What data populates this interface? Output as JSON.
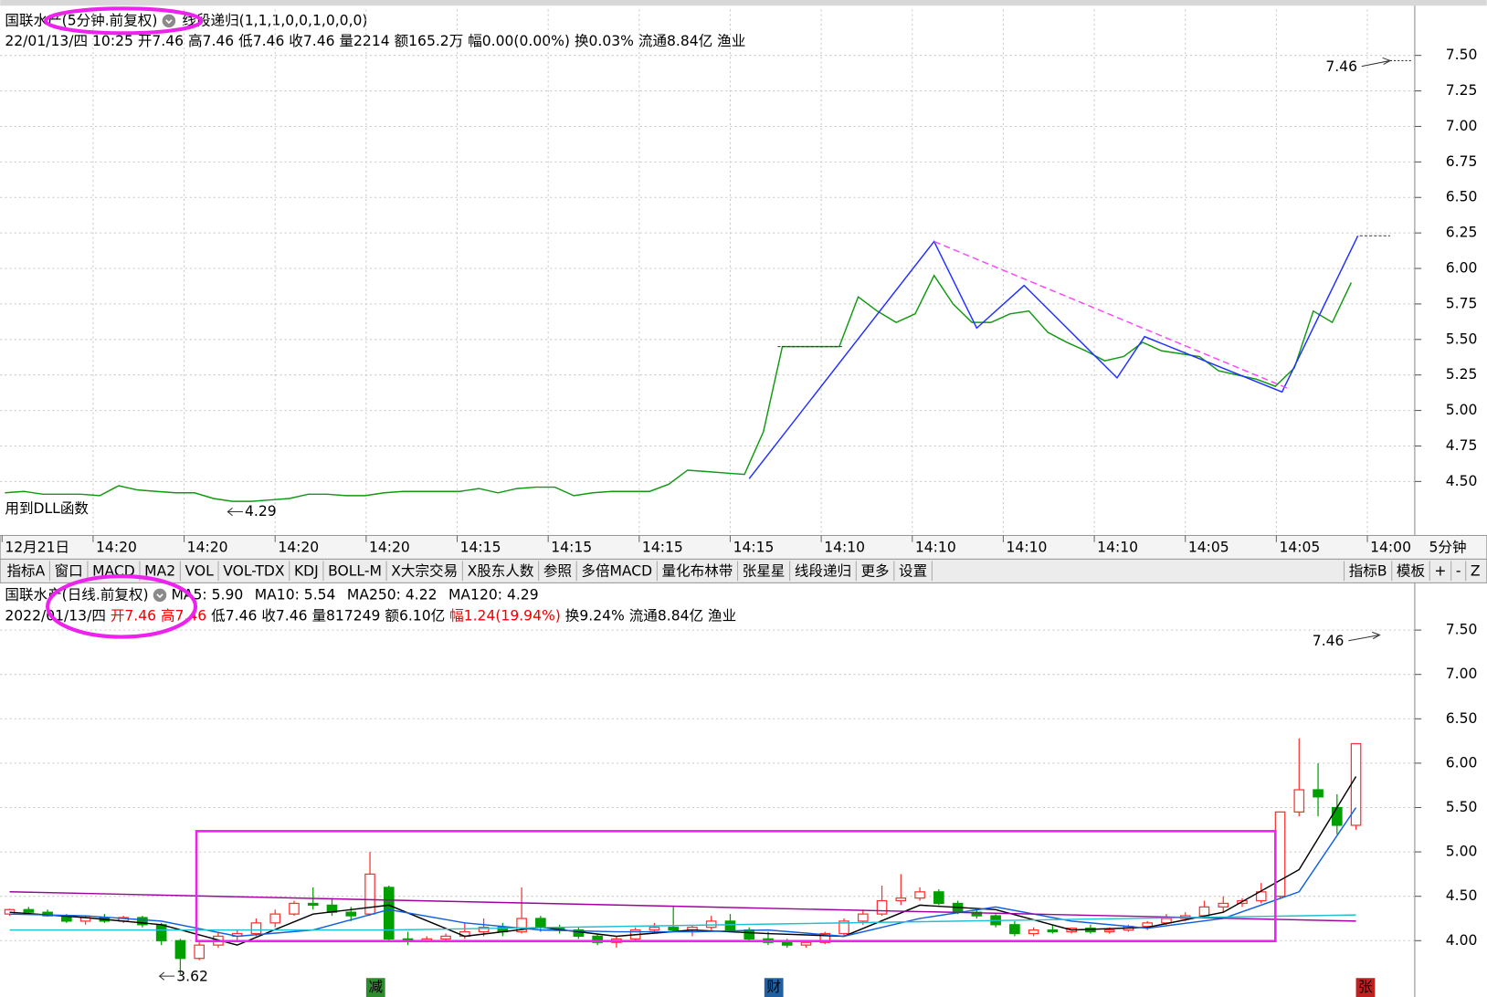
{
  "chart_data": [
    {
      "type": "line",
      "title": "国联水产(5分钟.前复权)",
      "indicator": "线段递归(1,1,1,0,0,1,0,0,0)",
      "info": "22/01/13/四 10:25 开7.46 高7.46 低7.46 收7.46 量2214 额165.2万 幅0.00(0.00%) 换0.03% 流通8.84亿 渔业",
      "x_tick_labels": [
        "12月21日",
        "14:20",
        "14:20",
        "14:20",
        "14:20",
        "14:15",
        "14:15",
        "14:15",
        "14:15",
        "14:10",
        "14:10",
        "14:10",
        "14:10",
        "14:05",
        "14:05",
        "14:00"
      ],
      "period": "5分钟",
      "color": "#119911",
      "values": [
        4.42,
        4.43,
        4.41,
        4.41,
        4.41,
        4.4,
        4.47,
        4.44,
        4.43,
        4.42,
        4.42,
        4.38,
        4.36,
        4.36,
        4.37,
        4.38,
        4.41,
        4.41,
        4.4,
        4.4,
        4.42,
        4.43,
        4.43,
        4.43,
        4.43,
        4.45,
        4.42,
        4.45,
        4.46,
        4.46,
        4.4,
        4.42,
        4.43,
        4.43,
        4.43,
        4.48,
        4.58,
        4.57,
        4.56,
        4.55,
        4.85,
        5.45,
        5.45,
        5.45,
        5.45,
        5.8,
        5.7,
        5.62,
        5.68,
        5.95,
        5.75,
        5.62,
        5.62,
        5.68,
        5.7,
        5.55,
        5.48,
        5.42,
        5.35,
        5.38,
        5.48,
        5.42,
        5.4,
        5.38,
        5.28,
        5.25,
        5.22,
        5.17,
        5.3,
        5.7,
        5.62,
        5.9
      ],
      "zigzag": {
        "color": "#1f2fff",
        "x": [
          39.25,
          49,
          51.25,
          53.75,
          58.65,
          60.1,
          67.35,
          71.35
        ],
        "values": [
          4.52,
          6.19,
          5.58,
          5.88,
          5.23,
          5.52,
          5.13,
          6.23
        ]
      },
      "trend": {
        "color": "#ff44ff",
        "x": [
          49,
          67.75
        ],
        "values": [
          6.19,
          5.15
        ]
      },
      "annotations": [
        "7.46",
        "4.29",
        "用到DLL函数"
      ],
      "ylim": [
        4.12,
        7.81
      ],
      "yticks": [
        {
          "value": 4.5,
          "label": "4.50"
        },
        {
          "value": 4.75,
          "label": "4.75"
        },
        {
          "value": 5,
          "label": "5.00"
        },
        {
          "value": 5.25,
          "label": "5.25"
        },
        {
          "value": 5.5,
          "label": "5.50"
        },
        {
          "value": 5.75,
          "label": "5.75"
        },
        {
          "value": 6,
          "label": "6.00"
        },
        {
          "value": 6.25,
          "label": "6.25"
        },
        {
          "value": 6.5,
          "label": "6.50"
        },
        {
          "value": 6.75,
          "label": "6.75"
        },
        {
          "value": 7,
          "label": "7.00"
        },
        {
          "value": 7.25,
          "label": "7.25"
        },
        {
          "value": 7.5,
          "label": "7.50"
        }
      ],
      "grid": true
    },
    {
      "type": "candlestick",
      "title": "国联水产(日线.前复权)",
      "ma_labels": [
        {
          "label": "MA5: 5.90",
          "color": "#000000"
        },
        {
          "label": "MA10: 5.54",
          "color": "#1060e0"
        },
        {
          "label": "MA250: 4.22",
          "color": "#a000a0"
        },
        {
          "label": "MA120: 4.29",
          "color": "#20c0d0"
        }
      ],
      "info": [
        {
          "text": "2022/01/13/四 ",
          "color": "#000000"
        },
        {
          "text": "开7.46 高7.46",
          "color": "#ee0000"
        },
        {
          "text": " 低7.46 收7.46 量817249 额6.10亿 ",
          "color": "#000000"
        },
        {
          "text": "幅1.24(19.94%)",
          "color": "#ee0000"
        },
        {
          "text": " 换9.24% 流通8.84亿 渔业",
          "color": "#000000"
        }
      ],
      "up_color": "#ff3030",
      "down_color": "#00a000",
      "candles": [
        [
          4.3,
          4.36,
          4.28,
          4.35
        ],
        [
          4.35,
          4.38,
          4.3,
          4.32
        ],
        [
          4.32,
          4.35,
          4.27,
          4.28
        ],
        [
          4.28,
          4.3,
          4.2,
          4.22
        ],
        [
          4.22,
          4.28,
          4.18,
          4.26
        ],
        [
          4.26,
          4.3,
          4.2,
          4.22
        ],
        [
          4.22,
          4.28,
          4.2,
          4.26
        ],
        [
          4.26,
          4.28,
          4.15,
          4.18
        ],
        [
          4.18,
          4.2,
          3.95,
          4.0
        ],
        [
          4.0,
          4.02,
          3.62,
          3.8
        ],
        [
          3.8,
          3.98,
          3.78,
          3.95
        ],
        [
          3.95,
          4.1,
          3.92,
          4.05
        ],
        [
          4.05,
          4.12,
          4.0,
          4.08
        ],
        [
          4.08,
          4.25,
          4.05,
          4.2
        ],
        [
          4.2,
          4.35,
          4.15,
          4.3
        ],
        [
          4.3,
          4.45,
          4.28,
          4.42
        ],
        [
          4.42,
          4.6,
          4.35,
          4.4
        ],
        [
          4.4,
          4.48,
          4.28,
          4.32
        ],
        [
          4.32,
          4.38,
          4.22,
          4.28
        ],
        [
          4.3,
          5.0,
          4.28,
          4.75
        ],
        [
          4.6,
          4.62,
          4.0,
          4.02
        ],
        [
          4.02,
          4.1,
          3.95,
          4.0
        ],
        [
          4.0,
          4.05,
          3.98,
          4.02
        ],
        [
          4.02,
          4.08,
          3.98,
          4.05
        ],
        [
          4.05,
          4.2,
          4.02,
          4.1
        ],
        [
          4.1,
          4.25,
          4.05,
          4.15
        ],
        [
          4.15,
          4.2,
          4.05,
          4.1
        ],
        [
          4.1,
          4.6,
          4.08,
          4.25
        ],
        [
          4.25,
          4.28,
          4.1,
          4.15
        ],
        [
          4.15,
          4.18,
          4.08,
          4.12
        ],
        [
          4.12,
          4.15,
          4.02,
          4.05
        ],
        [
          4.05,
          4.08,
          3.95,
          3.98
        ],
        [
          3.98,
          4.05,
          3.92,
          4.02
        ],
        [
          4.02,
          4.15,
          4.0,
          4.12
        ],
        [
          4.12,
          4.2,
          4.08,
          4.15
        ],
        [
          4.15,
          4.38,
          4.1,
          4.12
        ],
        [
          4.12,
          4.18,
          4.05,
          4.15
        ],
        [
          4.15,
          4.28,
          4.12,
          4.22
        ],
        [
          4.22,
          4.3,
          4.1,
          4.12
        ],
        [
          4.12,
          4.15,
          4.0,
          4.02
        ],
        [
          4.02,
          4.1,
          3.95,
          3.98
        ],
        [
          3.98,
          4.02,
          3.92,
          3.95
        ],
        [
          3.95,
          4.0,
          3.92,
          3.98
        ],
        [
          3.98,
          4.1,
          3.96,
          4.08
        ],
        [
          4.08,
          4.25,
          4.05,
          4.22
        ],
        [
          4.22,
          4.35,
          4.18,
          4.3
        ],
        [
          4.3,
          4.62,
          4.28,
          4.45
        ],
        [
          4.45,
          4.75,
          4.4,
          4.48
        ],
        [
          4.48,
          4.6,
          4.45,
          4.55
        ],
        [
          4.55,
          4.58,
          4.4,
          4.42
        ],
        [
          4.42,
          4.45,
          4.3,
          4.32
        ],
        [
          4.32,
          4.35,
          4.25,
          4.28
        ],
        [
          4.28,
          4.3,
          4.15,
          4.18
        ],
        [
          4.18,
          4.22,
          4.05,
          4.08
        ],
        [
          4.08,
          4.15,
          4.05,
          4.12
        ],
        [
          4.12,
          4.18,
          4.08,
          4.1
        ],
        [
          4.1,
          4.15,
          4.08,
          4.14
        ],
        [
          4.14,
          4.18,
          4.08,
          4.1
        ],
        [
          4.1,
          4.15,
          4.08,
          4.12
        ],
        [
          4.12,
          4.18,
          4.1,
          4.16
        ],
        [
          4.16,
          4.22,
          4.12,
          4.2
        ],
        [
          4.2,
          4.3,
          4.18,
          4.25
        ],
        [
          4.25,
          4.32,
          4.22,
          4.28
        ],
        [
          4.28,
          4.45,
          4.25,
          4.38
        ],
        [
          4.38,
          4.5,
          4.32,
          4.42
        ],
        [
          4.42,
          4.48,
          4.38,
          4.45
        ],
        [
          4.45,
          4.65,
          4.42,
          4.55
        ],
        [
          4.5,
          5.45,
          4.48,
          5.45
        ],
        [
          5.45,
          6.28,
          5.4,
          5.7
        ],
        [
          5.7,
          6.0,
          5.4,
          5.62
        ],
        [
          5.5,
          5.65,
          5.2,
          5.3
        ],
        [
          5.3,
          6.22,
          5.25,
          6.22
        ]
      ],
      "series": [
        {
          "color": "#000000",
          "x": [
            0,
            4,
            8,
            12,
            16,
            20,
            24,
            28,
            32,
            36,
            40,
            44,
            48,
            52,
            56,
            60,
            64,
            68,
            71
          ],
          "values": [
            4.32,
            4.26,
            4.18,
            3.95,
            4.3,
            4.4,
            4.05,
            4.15,
            4.05,
            4.12,
            4.08,
            4.05,
            4.4,
            4.35,
            4.12,
            4.15,
            4.32,
            4.8,
            5.85
          ]
        },
        {
          "color": "#1060e0",
          "x": [
            0,
            4,
            8,
            12,
            16,
            20,
            24,
            28,
            32,
            36,
            40,
            44,
            48,
            52,
            56,
            60,
            64,
            68,
            71
          ],
          "values": [
            4.3,
            4.28,
            4.22,
            4.05,
            4.12,
            4.35,
            4.2,
            4.12,
            4.1,
            4.1,
            4.12,
            4.05,
            4.25,
            4.38,
            4.22,
            4.14,
            4.25,
            4.55,
            5.5
          ]
        },
        {
          "color": "#a000a0",
          "x": [
            0,
            71
          ],
          "values": [
            4.55,
            4.22
          ]
        },
        {
          "color": "#20c0d0",
          "x": [
            0,
            20,
            71
          ],
          "values": [
            4.12,
            4.12,
            4.29
          ]
        }
      ],
      "annotations": [
        "7.46",
        "3.62"
      ],
      "markers": [
        "减",
        "财",
        "张"
      ],
      "ylim": [
        3.6,
        8.0
      ],
      "yticks": [
        {
          "value": 4,
          "label": "4.00"
        },
        {
          "value": 4.5,
          "label": "4.50"
        },
        {
          "value": 5,
          "label": "5.00"
        },
        {
          "value": 5.5,
          "label": "5.50"
        },
        {
          "value": 6,
          "label": "6.00"
        },
        {
          "value": 6.5,
          "label": "6.50"
        },
        {
          "value": 7,
          "label": "7.00"
        },
        {
          "value": 7.5,
          "label": "7.50"
        }
      ],
      "grid": true
    }
  ],
  "toolbar": {
    "items": [
      "指标A",
      "窗口",
      "MACD",
      "MA2",
      "VOL",
      "VOL-TDX",
      "KDJ",
      "BOLL-M",
      "X大宗交易",
      "X股东人数",
      "参照",
      "多倍MACD",
      "量化布林带",
      "张星星",
      "线段递归",
      "更多",
      "设置"
    ],
    "active": "线段递归",
    "right_items": [
      "指标B",
      "模板",
      "+",
      "-",
      "Z"
    ]
  }
}
